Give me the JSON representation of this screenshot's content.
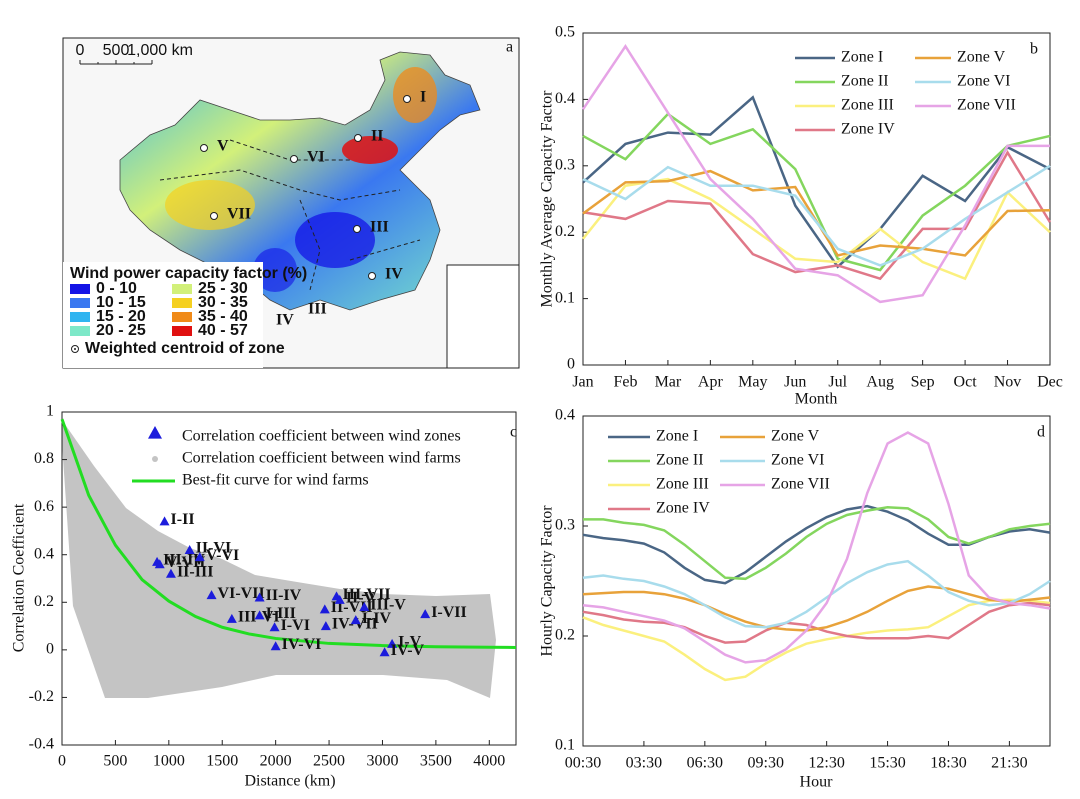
{
  "map": {
    "letter": "a",
    "scale": [
      "0",
      "500",
      "1,000 km"
    ],
    "zones": [
      "I",
      "II",
      "III",
      "IV",
      "V",
      "VI",
      "VII"
    ],
    "extra_labels": [
      "IV",
      "III"
    ],
    "legend_title": "Wind power capacity factor (%)",
    "legend": [
      {
        "label": "0 - 10",
        "color": "#1414e6"
      },
      {
        "label": "10 - 15",
        "color": "#3a78f0"
      },
      {
        "label": "15 - 20",
        "color": "#2fb4f0"
      },
      {
        "label": "20 - 25",
        "color": "#7de8c8"
      },
      {
        "label": "25 - 30",
        "color": "#d2f07a"
      },
      {
        "label": "30 - 35",
        "color": "#f5d020"
      },
      {
        "label": "35 - 40",
        "color": "#f08a18"
      },
      {
        "label": "40 - 57",
        "color": "#e01010"
      }
    ],
    "centroid_label": "Weighted centroid of zone"
  },
  "chart_data": [
    {
      "type": "line",
      "letter": "b",
      "x_label": "Month",
      "y_label": "Monthly Average Capacity Factor",
      "categories": [
        "Jan",
        "Feb",
        "Mar",
        "Apr",
        "May",
        "Jun",
        "Jul",
        "Aug",
        "Sep",
        "Oct",
        "Nov",
        "Dec"
      ],
      "ylim": [
        0,
        0.5
      ],
      "yticks": [
        0,
        0.1,
        0.2,
        0.3,
        0.4,
        0.5
      ],
      "series": [
        {
          "name": "Zone I",
          "color": "#4a6685",
          "values": [
            0.275,
            0.333,
            0.35,
            0.347,
            0.403,
            0.24,
            0.148,
            0.205,
            0.285,
            0.247,
            0.328,
            0.295
          ]
        },
        {
          "name": "Zone II",
          "color": "#84d65e",
          "values": [
            0.345,
            0.31,
            0.378,
            0.333,
            0.355,
            0.295,
            0.16,
            0.143,
            0.225,
            0.27,
            0.33,
            0.345
          ]
        },
        {
          "name": "Zone III",
          "color": "#fbf07e",
          "values": [
            0.19,
            0.27,
            0.28,
            0.25,
            0.205,
            0.16,
            0.155,
            0.205,
            0.155,
            0.13,
            0.26,
            0.2
          ]
        },
        {
          "name": "Zone IV",
          "color": "#e07888",
          "values": [
            0.23,
            0.22,
            0.247,
            0.243,
            0.167,
            0.14,
            0.15,
            0.13,
            0.205,
            0.205,
            0.32,
            0.215
          ]
        },
        {
          "name": "Zone V",
          "color": "#e8a23a",
          "values": [
            0.228,
            0.275,
            0.277,
            0.292,
            0.263,
            0.268,
            0.165,
            0.18,
            0.175,
            0.165,
            0.232,
            0.233
          ]
        },
        {
          "name": "Zone VI",
          "color": "#a8dcec",
          "values": [
            0.28,
            0.25,
            0.298,
            0.27,
            0.27,
            0.255,
            0.175,
            0.15,
            0.175,
            0.22,
            0.26,
            0.3
          ]
        },
        {
          "name": "Zone VII",
          "color": "#e6a4e6",
          "values": [
            0.385,
            0.48,
            0.38,
            0.28,
            0.22,
            0.145,
            0.135,
            0.095,
            0.105,
            0.21,
            0.33,
            0.33
          ]
        }
      ]
    },
    {
      "type": "scatter",
      "letter": "c",
      "x_label": "Distance (km)",
      "y_label": "Correlation Coefficient",
      "xlim": [
        0,
        4250
      ],
      "xticks": [
        0,
        500,
        1000,
        1500,
        2000,
        2500,
        3000,
        3500,
        4000
      ],
      "ylim": [
        -0.4,
        1
      ],
      "yticks": [
        -0.4,
        -0.2,
        0,
        0.2,
        0.4,
        0.6,
        0.8,
        1
      ],
      "series": [
        {
          "name": "Correlation coefficient between wind zones",
          "color": "#1c1cdc",
          "labels": [
            "I-II",
            "III-IV",
            "V-VII",
            "II-VI",
            "V-VI",
            "II-III",
            "VI-VII",
            "III-VI",
            "II-IV",
            "I-III",
            "I-VI",
            "IV-VI",
            "II-VII",
            "III-VII",
            "II-V",
            "IV-VII",
            "I-IV",
            "III-V",
            "I-VII",
            "I-V",
            "IV-V"
          ],
          "x": [
            960,
            890,
            915,
            1195,
            1290,
            1020,
            1400,
            1590,
            1850,
            1850,
            1990,
            2000,
            2460,
            2570,
            2600,
            2470,
            2750,
            2830,
            3400,
            3090,
            3020
          ],
          "values": [
            0.54,
            0.37,
            0.36,
            0.42,
            0.39,
            0.32,
            0.23,
            0.13,
            0.22,
            0.145,
            0.095,
            0.015,
            0.17,
            0.225,
            0.21,
            0.1,
            0.125,
            0.18,
            0.15,
            0.025,
            -0.01
          ]
        },
        {
          "name": "Correlation coefficient between wind farms",
          "color": "#c4c4c4"
        },
        {
          "name": "Best-fit curve for wind farms",
          "color": "#22dd22",
          "x": [
            0,
            250,
            500,
            750,
            1000,
            1250,
            1500,
            1750,
            2000,
            2500,
            3000,
            3500,
            4000,
            4250
          ],
          "values": [
            0.97,
            0.65,
            0.44,
            0.295,
            0.205,
            0.14,
            0.095,
            0.067,
            0.048,
            0.027,
            0.018,
            0.013,
            0.011,
            0.01
          ]
        }
      ]
    },
    {
      "type": "line",
      "letter": "d",
      "x_label": "Hour",
      "y_label": "Hourly Capacity Factor",
      "categories": [
        "00:30",
        null,
        null,
        "03:30",
        null,
        null,
        "06:30",
        null,
        null,
        "09:30",
        null,
        null,
        "12:30",
        null,
        null,
        "15:30",
        null,
        null,
        "18:30",
        null,
        null,
        "21:30",
        null,
        null
      ],
      "ylim": [
        0.1,
        0.4
      ],
      "yticks": [
        0.1,
        0.2,
        0.3,
        0.4
      ],
      "series": [
        {
          "name": "Zone I",
          "color": "#4a6685",
          "values": [
            0.292,
            0.289,
            0.287,
            0.284,
            0.276,
            0.262,
            0.251,
            0.248,
            0.258,
            0.272,
            0.286,
            0.298,
            0.308,
            0.315,
            0.318,
            0.313,
            0.305,
            0.293,
            0.283,
            0.283,
            0.29,
            0.295,
            0.297,
            0.294
          ]
        },
        {
          "name": "Zone II",
          "color": "#84d65e",
          "values": [
            0.306,
            0.306,
            0.303,
            0.301,
            0.296,
            0.283,
            0.268,
            0.253,
            0.252,
            0.262,
            0.275,
            0.29,
            0.302,
            0.31,
            0.314,
            0.317,
            0.316,
            0.306,
            0.29,
            0.284,
            0.29,
            0.297,
            0.3,
            0.302
          ]
        },
        {
          "name": "Zone III",
          "color": "#fbf07e",
          "values": [
            0.217,
            0.21,
            0.205,
            0.2,
            0.195,
            0.183,
            0.17,
            0.16,
            0.163,
            0.175,
            0.185,
            0.193,
            0.197,
            0.2,
            0.203,
            0.205,
            0.206,
            0.208,
            0.218,
            0.228,
            0.232,
            0.233,
            0.232,
            0.23
          ]
        },
        {
          "name": "Zone IV",
          "color": "#e07888",
          "values": [
            0.222,
            0.219,
            0.215,
            0.213,
            0.212,
            0.208,
            0.2,
            0.194,
            0.195,
            0.205,
            0.212,
            0.21,
            0.204,
            0.2,
            0.198,
            0.198,
            0.198,
            0.2,
            0.198,
            0.21,
            0.222,
            0.228,
            0.23,
            0.228
          ]
        },
        {
          "name": "Zone V",
          "color": "#e8a23a",
          "values": [
            0.238,
            0.239,
            0.24,
            0.24,
            0.238,
            0.234,
            0.228,
            0.22,
            0.213,
            0.208,
            0.206,
            0.205,
            0.208,
            0.214,
            0.222,
            0.232,
            0.241,
            0.245,
            0.243,
            0.238,
            0.233,
            0.231,
            0.233,
            0.235
          ]
        },
        {
          "name": "Zone VI",
          "color": "#a8dcec",
          "values": [
            0.253,
            0.255,
            0.252,
            0.25,
            0.245,
            0.238,
            0.228,
            0.217,
            0.209,
            0.208,
            0.212,
            0.222,
            0.235,
            0.248,
            0.258,
            0.265,
            0.268,
            0.255,
            0.24,
            0.232,
            0.228,
            0.23,
            0.238,
            0.25
          ]
        },
        {
          "name": "Zone VII",
          "color": "#e6a4e6",
          "values": [
            0.228,
            0.226,
            0.222,
            0.218,
            0.214,
            0.207,
            0.195,
            0.183,
            0.176,
            0.178,
            0.188,
            0.205,
            0.23,
            0.27,
            0.33,
            0.375,
            0.385,
            0.375,
            0.32,
            0.255,
            0.235,
            0.23,
            0.228,
            0.225
          ]
        }
      ]
    }
  ]
}
